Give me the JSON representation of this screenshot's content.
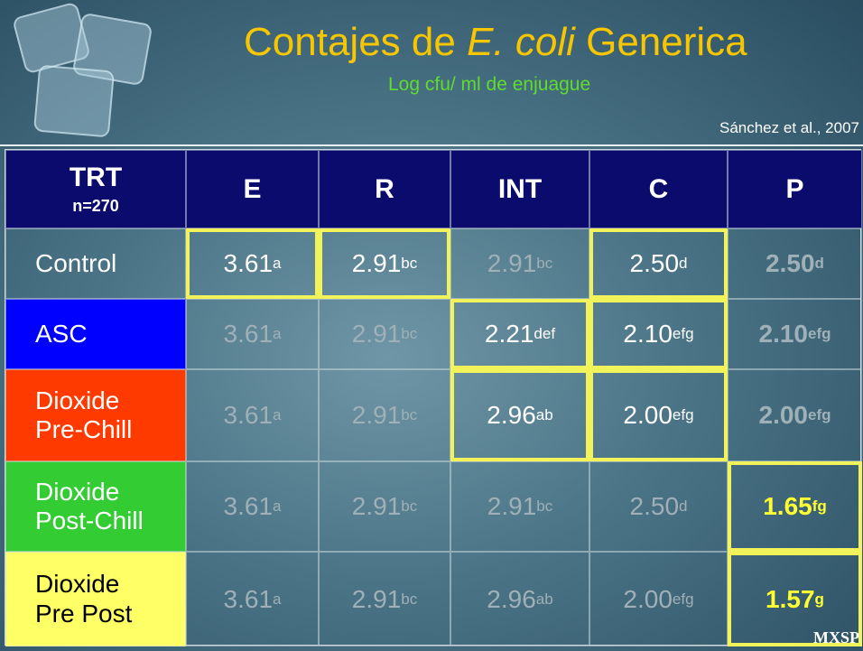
{
  "title": [
    "Contajes de ",
    "E. coli",
    " Generica"
  ],
  "subtitle": "Log cfu/ ml de enjuague",
  "citation": "Sánchez et al., 2007",
  "watermark": "MXSP",
  "table": {
    "header": [
      [
        "TRT",
        "n=270"
      ],
      [
        "E"
      ],
      [
        "R"
      ],
      [
        "INT"
      ],
      [
        "C"
      ],
      [
        "P"
      ]
    ],
    "rows": [
      {
        "label": [
          "Control"
        ],
        "color": "transparent",
        "text_color": "#ffffff",
        "cells": [
          {
            "value": "3.61",
            "sup": "a",
            "highlight": true
          },
          {
            "value": "2.91",
            "sup": "bc",
            "highlight": true
          },
          {
            "value": "2.91",
            "sup": "bc",
            "highlight": false
          },
          {
            "value": "2.50",
            "sup": "d",
            "highlight": true
          },
          {
            "value": "2.50",
            "sup": "d",
            "highlight": false
          }
        ]
      },
      {
        "label": [
          "ASC"
        ],
        "color": "#0000ff",
        "text_color": "#ffffff",
        "cells": [
          {
            "value": "3.61",
            "sup": "a",
            "highlight": false
          },
          {
            "value": "2.91",
            "sup": "bc",
            "highlight": false
          },
          {
            "value": "2.21",
            "sup": "def",
            "highlight": true
          },
          {
            "value": "2.10",
            "sup": "efg",
            "highlight": true
          },
          {
            "value": "2.10",
            "sup": "efg",
            "highlight": false
          }
        ]
      },
      {
        "label": [
          "Dioxide",
          "Pre-Chill"
        ],
        "color": "#ff3a00",
        "text_color": "#ffffff",
        "cells": [
          {
            "value": "3.61",
            "sup": "a",
            "highlight": false
          },
          {
            "value": "2.91",
            "sup": "bc",
            "highlight": false
          },
          {
            "value": "2.96",
            "sup": "ab",
            "highlight": true
          },
          {
            "value": "2.00",
            "sup": "efg",
            "highlight": true
          },
          {
            "value": "2.00",
            "sup": "efg",
            "highlight": false
          }
        ]
      },
      {
        "label": [
          "Dioxide",
          "Post-Chill"
        ],
        "color": "#33cc33",
        "text_color": "#ffffff",
        "cells": [
          {
            "value": "3.61",
            "sup": "a",
            "highlight": false
          },
          {
            "value": "2.91",
            "sup": "bc",
            "highlight": false
          },
          {
            "value": "2.91",
            "sup": "bc",
            "highlight": false
          },
          {
            "value": "2.50",
            "sup": "d",
            "highlight": false
          },
          {
            "value": "1.65",
            "sup": "fg",
            "highlight": true
          }
        ]
      },
      {
        "label": [
          "Dioxide",
          "Pre Post"
        ],
        "color": "#ffff66",
        "text_color": "#000000",
        "cells": [
          {
            "value": "3.61",
            "sup": "a",
            "highlight": false
          },
          {
            "value": "2.91",
            "sup": "bc",
            "highlight": false
          },
          {
            "value": "2.96",
            "sup": "ab",
            "highlight": false
          },
          {
            "value": "2.00",
            "sup": "efg",
            "highlight": false
          },
          {
            "value": "1.57",
            "sup": "g",
            "highlight": true
          }
        ]
      }
    ]
  }
}
